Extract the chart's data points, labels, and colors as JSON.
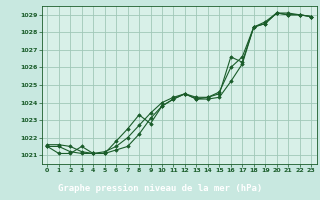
{
  "title": "Graphe pression niveau de la mer (hPa)",
  "bg_color": "#c8e8e0",
  "plot_bg_color": "#d8f0e8",
  "label_bg_color": "#5a9a80",
  "grid_color": "#a0c8b8",
  "line_color": "#1a5c2a",
  "marker_color": "#1a5c2a",
  "xlim": [
    -0.5,
    23.5
  ],
  "ylim": [
    1020.5,
    1029.5
  ],
  "xticks": [
    0,
    1,
    2,
    3,
    4,
    5,
    6,
    7,
    8,
    9,
    10,
    11,
    12,
    13,
    14,
    15,
    16,
    17,
    18,
    19,
    20,
    21,
    22,
    23
  ],
  "yticks": [
    1021,
    1022,
    1023,
    1024,
    1025,
    1026,
    1027,
    1028,
    1029
  ],
  "series1": {
    "x": [
      0,
      1,
      2,
      3,
      4,
      5,
      6,
      7,
      8,
      9,
      10,
      11,
      12,
      13,
      14,
      15,
      16,
      17,
      18,
      19,
      20,
      21,
      22,
      23
    ],
    "y": [
      1021.5,
      1021.5,
      1021.2,
      1021.1,
      1021.1,
      1021.1,
      1021.3,
      1021.5,
      1022.2,
      1023.1,
      1023.8,
      1024.2,
      1024.5,
      1024.2,
      1024.2,
      1024.3,
      1025.2,
      1026.2,
      1028.3,
      1028.5,
      1029.1,
      1029.0,
      1029.0,
      1028.9
    ]
  },
  "series2": {
    "x": [
      0,
      1,
      2,
      3,
      4,
      5,
      6,
      7,
      8,
      9,
      10,
      11,
      12,
      13,
      14,
      15,
      16,
      17,
      18,
      19,
      20,
      21,
      22,
      23
    ],
    "y": [
      1021.5,
      1021.1,
      1021.1,
      1021.5,
      1021.1,
      1021.1,
      1021.8,
      1022.5,
      1023.3,
      1022.8,
      1023.8,
      1024.2,
      1024.5,
      1024.2,
      1024.3,
      1024.5,
      1026.6,
      1026.3,
      1028.3,
      1028.5,
      1029.1,
      1029.0,
      1029.0,
      1028.9
    ]
  },
  "series3": {
    "x": [
      0,
      1,
      2,
      3,
      4,
      5,
      6,
      7,
      8,
      9,
      10,
      11,
      12,
      13,
      14,
      15,
      16,
      17,
      18,
      19,
      20,
      21,
      22,
      23
    ],
    "y": [
      1021.6,
      1021.6,
      1021.5,
      1021.2,
      1021.1,
      1021.2,
      1021.5,
      1022.0,
      1022.7,
      1023.4,
      1024.0,
      1024.3,
      1024.5,
      1024.3,
      1024.3,
      1024.6,
      1026.0,
      1026.6,
      1028.3,
      1028.6,
      1029.1,
      1029.1,
      1029.0,
      1028.9
    ]
  }
}
